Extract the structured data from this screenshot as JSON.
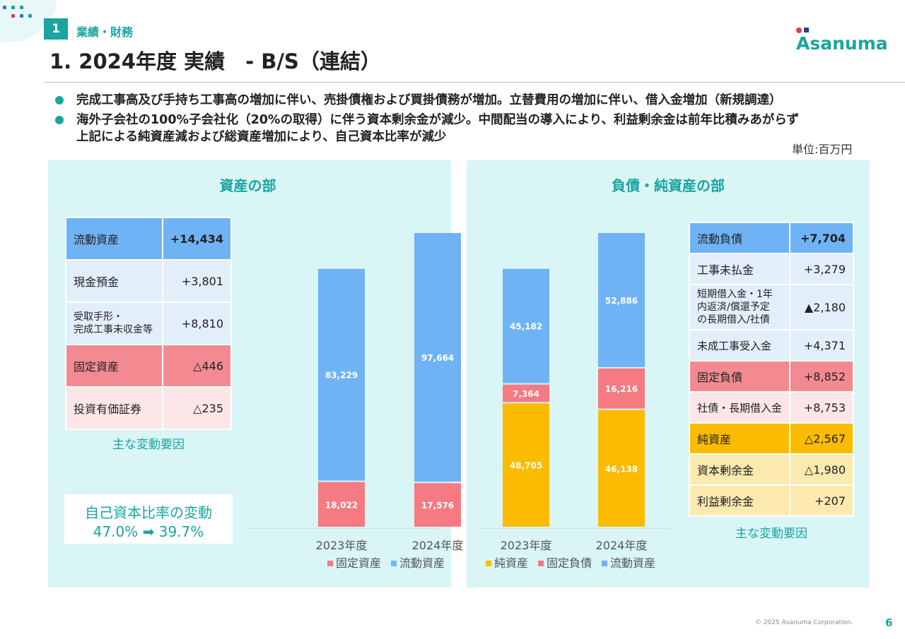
{
  "header": {
    "section_number": "1",
    "section_label": "業績・財務",
    "title": "1. 2024年度 実績　- B/S（連結）",
    "logo_text": "Asanuma"
  },
  "bullets": [
    "完成工事高及び手持ち工事高の増加に伴い、売掛債権および買掛債務が増加。立替費用の増加に伴い、借入金増加（新規調達）",
    "海外子会社の100%子会社化（20%の取得）に伴う資本剰余金が減少。中間配当の導入により、利益剰余金は前年比積みあがらず",
    "上記による純資産減および総資産増加により、自己資本比率が減少"
  ],
  "unit": "単位:百万円",
  "assets_panel": {
    "title": "資産の部",
    "table": [
      {
        "label": "流動資産",
        "value": "+14,434"
      },
      {
        "label": "現金預金",
        "value": "+3,801"
      },
      {
        "label": "受取手形・\n完成工事未収金等",
        "value": "+8,810"
      },
      {
        "label": "固定資産",
        "value": "△446"
      },
      {
        "label": "投資有価証券",
        "value": "△235"
      }
    ],
    "table_caption": "主な変動要因",
    "ratio_title": "自己資本比率の変動",
    "ratio_value": "47.0% ➡ 39.7%"
  },
  "liabilities_panel": {
    "title": "負債・純資産の部",
    "table": [
      {
        "label": "流動負債",
        "value": "+7,704"
      },
      {
        "label": "工事未払金",
        "value": "+3,279"
      },
      {
        "label": "短期借入金・1年\n内返済/償還予定\nの長期借入/社債",
        "value": "▲2,180"
      },
      {
        "label": "未成工事受入金",
        "value": "+4,371"
      },
      {
        "label": "固定負債",
        "value": "+8,852"
      },
      {
        "label": "社債・長期借入金",
        "value": "+8,753"
      },
      {
        "label": "純資産",
        "value": "△2,567"
      },
      {
        "label": "資本剰余金",
        "value": "△1,980"
      },
      {
        "label": "利益剰余金",
        "value": "+207"
      }
    ],
    "table_caption": "主な変動要因"
  },
  "colors": {
    "teal": "#1aa5a0",
    "blue": "#6fb3f5",
    "red": "#f38a92",
    "yellow": "#fbbb00",
    "panel_bg": "#d9f5f5"
  },
  "chart_data": [
    {
      "type": "bar",
      "stacked": true,
      "categories": [
        "2023年度",
        "2024年度"
      ],
      "series": [
        {
          "name": "固定資産",
          "values": [
            18022,
            17576
          ],
          "color": "#f57a82"
        },
        {
          "name": "流動資産",
          "values": [
            83229,
            97664
          ],
          "color": "#6fb3f5"
        }
      ],
      "legend_position": "bottom"
    },
    {
      "type": "bar",
      "stacked": true,
      "categories": [
        "2023年度",
        "2024年度"
      ],
      "series": [
        {
          "name": "純資産",
          "values": [
            48705,
            46138
          ],
          "color": "#fbbb00"
        },
        {
          "name": "固定負債",
          "values": [
            7364,
            16216
          ],
          "color": "#f57a82"
        },
        {
          "name": "流動資産",
          "values": [
            45182,
            52886
          ],
          "color": "#6fb3f5"
        }
      ],
      "legend_position": "bottom"
    }
  ],
  "footer": {
    "copyright": "© 2025 Asanuma Corporation.",
    "page_number": "6"
  }
}
